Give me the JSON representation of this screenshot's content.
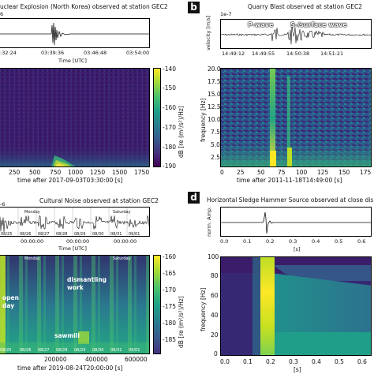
{
  "panel_b": {
    "badge": "b",
    "title": "Quarry Blast observed at station GEC2",
    "exp": "1e-7",
    "ylabel_trace": "velocity [m/s]",
    "p_label": "P-wave",
    "s_label": "S-/surface wave",
    "trace_ticks": [
      "14:49:12",
      "14:49:55",
      "14:50:38",
      "14:51:21"
    ],
    "spec_yticks": [
      "20.0",
      "17.5",
      "15.0",
      "12.5",
      "10.0",
      "7.5",
      "5.0",
      "2.5"
    ],
    "spec_xticks": [
      "0",
      "25",
      "50",
      "75",
      "100",
      "125",
      "150",
      "175"
    ],
    "spec_ylabel": "frequency [Hz]",
    "spec_xlabel": "time after 2011-11-18T14:49:00 [s]"
  },
  "panel_a": {
    "title": "uclear Explosion (North Korea) observed at station GEC2",
    "exp": "6",
    "trace_ticks": [
      ":32:24",
      "03:39:36",
      "03:46:48",
      "03:54:00"
    ],
    "trace_xlabel": "Time [UTC]",
    "spec_xticks": [
      "250",
      "500",
      "750",
      "1000",
      "1250",
      "1500",
      "1750"
    ],
    "spec_xlabel": "time after 2017-09-03T03:30:00 [s]",
    "cbar_ticks": [
      "-140",
      "-150",
      "-160",
      "-170",
      "-180",
      "-190"
    ],
    "cbar_label": "dB [re (m²/s²)/Hz]"
  },
  "panel_c": {
    "title": "Cultural Noise observed at station GEC2",
    "exp": "-6",
    "day_labels": [
      "Monday",
      "Saturday"
    ],
    "dates": [
      "08/25",
      "08/26",
      "08/27",
      "08/28",
      "08/29",
      "08/30",
      "08/31",
      "09/01"
    ],
    "trace_ticks": [
      "00:00:00",
      "00:00:00",
      "00:00:00"
    ],
    "trace_xlabel": "Time [UTC]",
    "spec_day_labels": [
      "Monday",
      "Saturday"
    ],
    "ann_dismantling": "dismantling",
    "ann_work": "work",
    "ann_open": "open",
    "ann_day": "day",
    "ann_sawmill": "sawmill",
    "spec_xticks": [
      "200000",
      "400000",
      "600000"
    ],
    "spec_xlabel": "time after 2019-08-24T20:00:00 [s]",
    "cbar_ticks": [
      "-160",
      "-165",
      "-170",
      "-175",
      "-180",
      "-185"
    ],
    "cbar_label": "dB [re (m²/s²)/Hz]"
  },
  "panel_d": {
    "badge": "d",
    "title": "Horizontal Sledge Hammer Source observed at close dis",
    "ylabel_trace": "norm. Amp.",
    "trace_xticks": [
      "0.0",
      "0.1",
      "0.2",
      "0.3",
      "0.4",
      "0.5",
      "0.6"
    ],
    "trace_xlabel": "[s]",
    "spec_yticks": [
      "100",
      "80",
      "60",
      "40",
      "20",
      "0"
    ],
    "spec_ylabel": "frequency [Hz]",
    "spec_xticks": [
      "0.0",
      "0.1",
      "0.2",
      "0.3",
      "0.4",
      "0.5",
      "0.6"
    ],
    "spec_xlabel": "[s]"
  }
}
